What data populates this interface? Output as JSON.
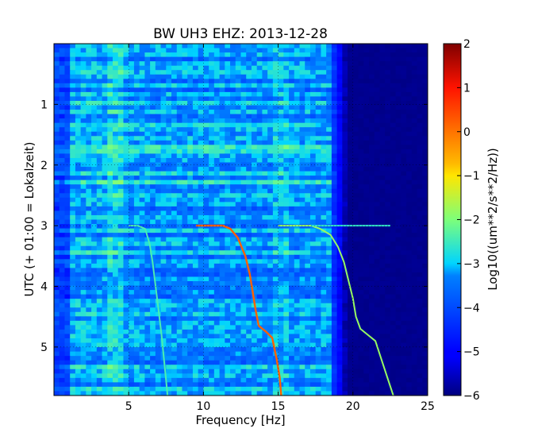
{
  "chart_data": {
    "type": "heatmap",
    "title": "BW UH3 EHZ: 2013-12-28",
    "xlabel": "Frequency [Hz]",
    "ylabel": "UTC (+ 01:00 = Lokalzeit)",
    "xlim": [
      0,
      25
    ],
    "ylim": [
      5.8,
      0
    ],
    "x_ticks": [
      5,
      10,
      15,
      20,
      25
    ],
    "x_tick_labels": [
      "5",
      "10",
      "15",
      "20",
      "25"
    ],
    "y_ticks": [
      1,
      2,
      3,
      4,
      5
    ],
    "y_tick_labels": [
      "1",
      "2",
      "3",
      "4",
      "5"
    ],
    "grid": true,
    "colormap": "jet",
    "colorbar": {
      "label": "Log10((um**2/s**2/Hz))",
      "range": [
        -6,
        2
      ],
      "ticks": [
        2,
        1,
        0,
        -1,
        -2,
        -3,
        -4,
        -5,
        -6
      ],
      "tick_labels": [
        "2",
        "1",
        "0",
        "−1",
        "−2",
        "−3",
        "−4",
        "−5",
        "−6"
      ]
    },
    "background": {
      "low_freq_level": -3.6,
      "mid_freq_level": -3.3,
      "rolloff_start_hz": 18.5,
      "rolloff_end_hz": 19.6,
      "high_freq_level": -5.9
    },
    "traces": [
      {
        "name_hidden": "",
        "level": -2.4,
        "points": [
          [
            5.0,
            3.0
          ],
          [
            5.6,
            3.0
          ],
          [
            6.1,
            3.05
          ],
          [
            6.4,
            3.3
          ],
          [
            6.6,
            3.6
          ],
          [
            6.8,
            4.0
          ],
          [
            7.0,
            4.4
          ],
          [
            7.2,
            4.8
          ],
          [
            7.4,
            5.3
          ],
          [
            7.6,
            5.8
          ]
        ]
      },
      {
        "name_hidden": "",
        "level": 0.2,
        "points": [
          [
            9.5,
            3.0
          ],
          [
            11.3,
            3.0
          ],
          [
            11.8,
            3.05
          ],
          [
            12.3,
            3.2
          ],
          [
            12.8,
            3.5
          ],
          [
            13.1,
            3.8
          ],
          [
            13.3,
            4.1
          ],
          [
            13.5,
            4.4
          ],
          [
            13.7,
            4.65
          ],
          [
            14.2,
            4.75
          ],
          [
            14.6,
            4.85
          ],
          [
            14.9,
            5.2
          ],
          [
            15.1,
            5.5
          ],
          [
            15.2,
            5.8
          ]
        ]
      },
      {
        "name_hidden": "",
        "level": -1.8,
        "points": [
          [
            15.0,
            3.0
          ],
          [
            17.2,
            3.0
          ],
          [
            17.8,
            3.05
          ],
          [
            18.5,
            3.15
          ],
          [
            19.0,
            3.35
          ],
          [
            19.4,
            3.6
          ],
          [
            19.7,
            3.9
          ],
          [
            20.0,
            4.2
          ],
          [
            20.2,
            4.5
          ],
          [
            20.5,
            4.7
          ],
          [
            21.0,
            4.8
          ],
          [
            21.5,
            4.9
          ],
          [
            21.9,
            5.2
          ],
          [
            22.3,
            5.5
          ],
          [
            22.7,
            5.8
          ]
        ]
      },
      {
        "name_hidden": "",
        "level": -2.6,
        "points": [
          [
            17.2,
            3.0
          ],
          [
            22.5,
            3.0
          ]
        ]
      }
    ]
  }
}
